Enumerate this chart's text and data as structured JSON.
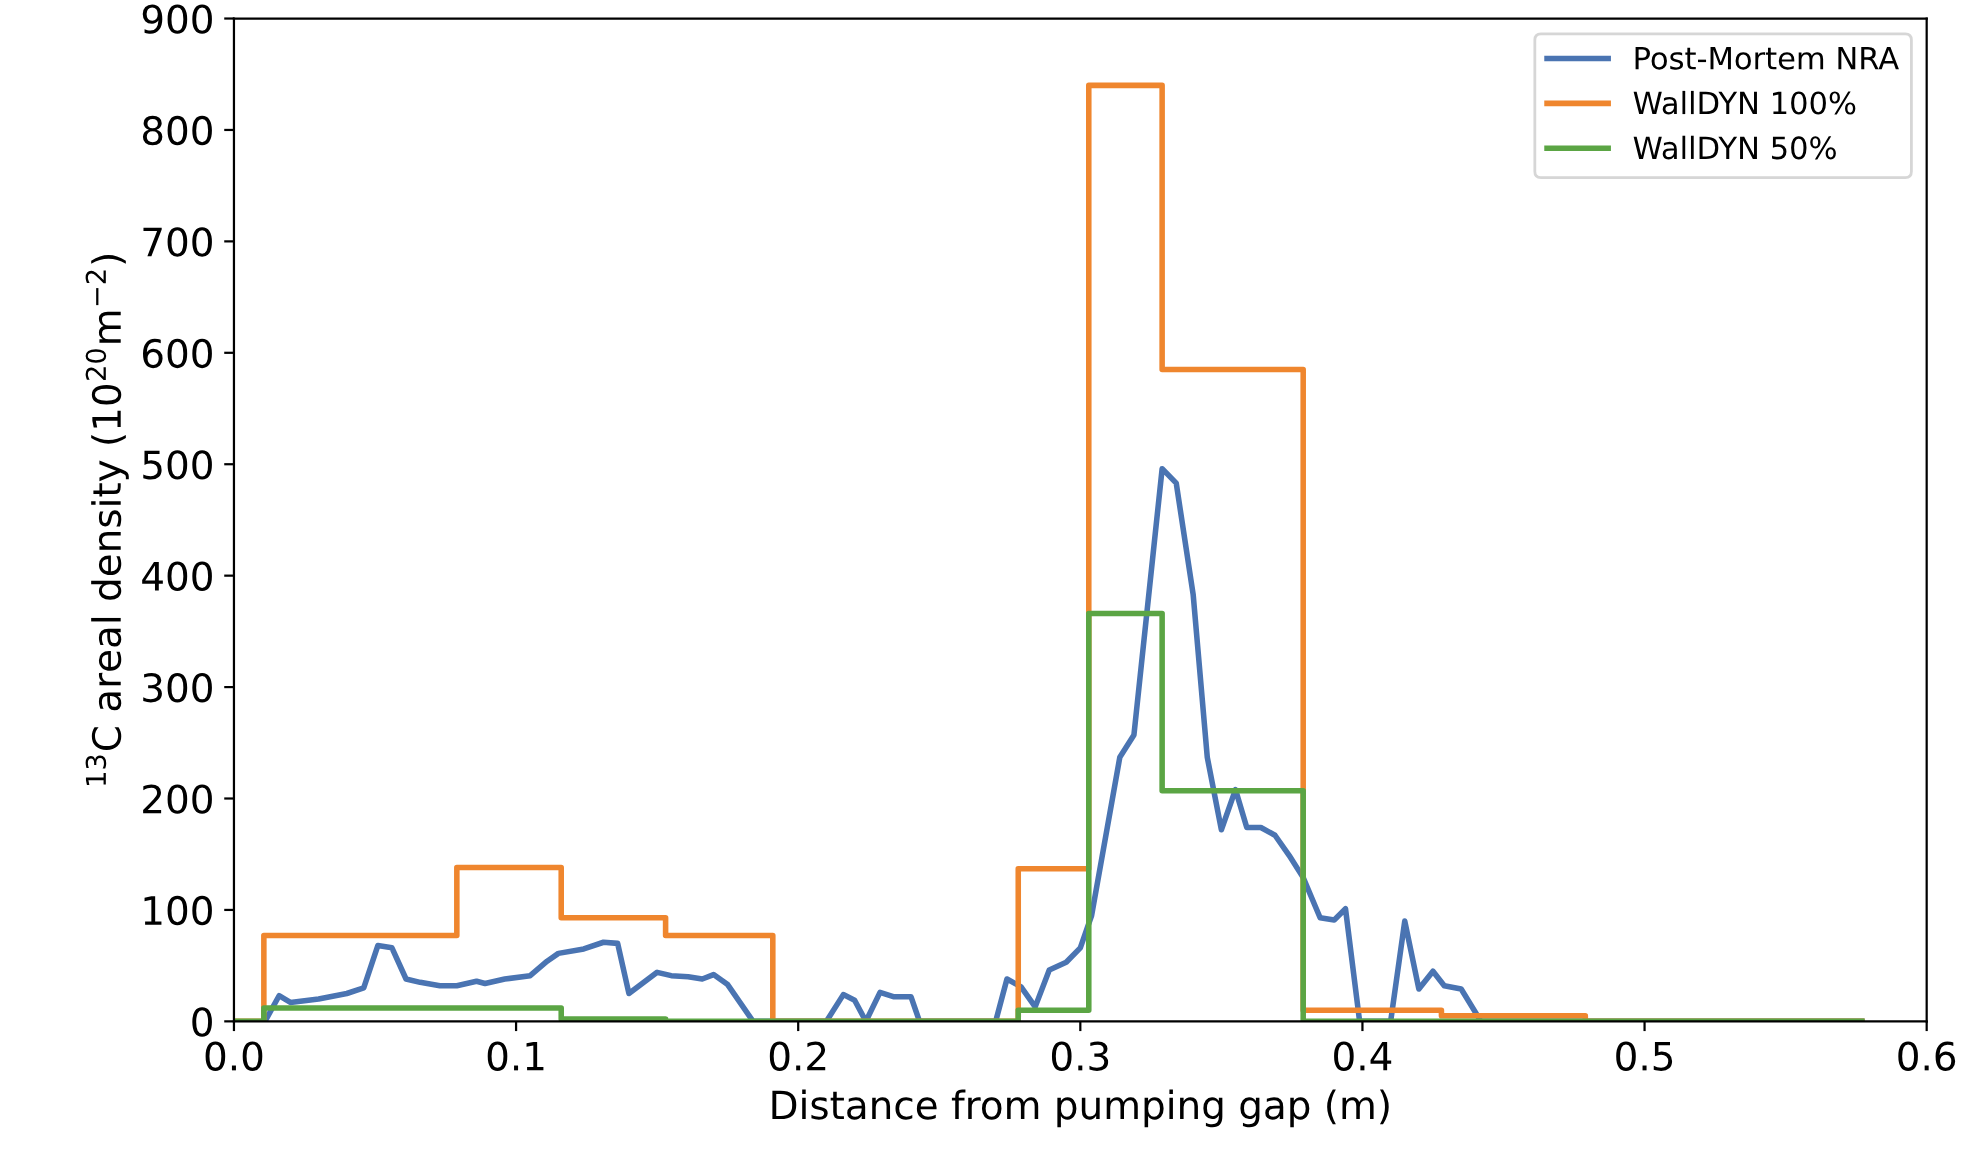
{
  "chart_data": {
    "type": "line",
    "xlabel": "Distance from pumping gap (m)",
    "ylabel": "$^{13}$C areal density (10$^{20}$m$^{−2}$)",
    "xlim": [
      0.0,
      0.6
    ],
    "ylim": [
      0,
      900
    ],
    "xticks": [
      {
        "value": 0,
        "label": "0.0"
      },
      0.1,
      0.2,
      0.3,
      0.4,
      0.5,
      0.6
    ],
    "yticks": [
      0,
      100,
      200,
      300,
      400,
      500,
      600,
      700,
      800,
      900
    ],
    "grid": false,
    "legend": "top right",
    "series": [
      {
        "name": "Post-Mortem NRA",
        "color": "#4a74b2",
        "x": [
          0.011,
          0.016,
          0.02,
          0.03,
          0.04,
          0.046,
          0.051,
          0.056,
          0.061,
          0.066,
          0.073,
          0.079,
          0.086,
          0.089,
          0.096,
          0.105,
          0.111,
          0.115,
          0.124,
          0.131,
          0.136,
          0.14,
          0.15,
          0.155,
          0.161,
          0.166,
          0.17,
          0.175,
          0.184,
          0.21,
          0.216,
          0.22,
          0.224,
          0.229,
          0.234,
          0.24,
          0.243,
          0.27,
          0.274,
          0.279,
          0.284,
          0.289,
          0.295,
          0.3,
          0.304,
          0.314,
          0.319,
          0.329,
          0.334,
          0.34,
          0.345,
          0.35,
          0.355,
          0.359,
          0.364,
          0.369,
          0.374,
          0.379,
          0.385,
          0.39,
          0.394,
          0.399,
          0.41,
          0.415,
          0.42,
          0.425,
          0.429,
          0.435,
          0.442,
          0.577
        ],
        "values": [
          0,
          23,
          17,
          20,
          25,
          30,
          68,
          66,
          38,
          35,
          32,
          32,
          36,
          34,
          38,
          41,
          54,
          61,
          65,
          71,
          70,
          25,
          44,
          41,
          40,
          38,
          42,
          33,
          0,
          0,
          24,
          19,
          0,
          26,
          22,
          22,
          0,
          0,
          38,
          31,
          13,
          46,
          53,
          66,
          95,
          237,
          257,
          496,
          483,
          383,
          237,
          172,
          208,
          174,
          174,
          167,
          149,
          129,
          93,
          91,
          101,
          0,
          0,
          90,
          29,
          45,
          32,
          29,
          0,
          0
        ]
      },
      {
        "name": "WallDYN 100%",
        "type": "step",
        "color": "#ef862e",
        "x": [
          0.0,
          0.0106,
          0.079,
          0.116,
          0.153,
          0.191,
          0.278,
          0.303,
          0.329,
          0.379,
          0.428,
          0.479,
          0.577
        ],
        "values": [
          0,
          77,
          138,
          93,
          77,
          0,
          137,
          840,
          585,
          10,
          5,
          0,
          0
        ]
      },
      {
        "name": "WallDYN 50%",
        "type": "step",
        "color": "#5ba544",
        "x": [
          0.0,
          0.0106,
          0.116,
          0.153,
          0.278,
          0.303,
          0.329,
          0.379,
          0.577
        ],
        "values": [
          0,
          12,
          2,
          0,
          10,
          366,
          207,
          0,
          0
        ]
      }
    ]
  }
}
